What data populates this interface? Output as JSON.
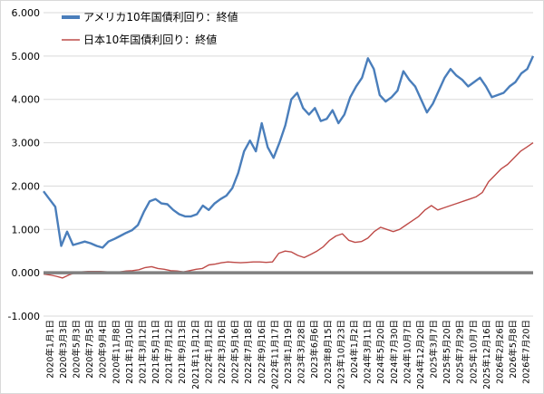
{
  "chart_data": {
    "type": "line",
    "title": "",
    "xlabel": "",
    "ylabel": "",
    "ylim": [
      -1.0,
      6.0
    ],
    "y_ticks": [
      "6.000",
      "5.000",
      "4.000",
      "3.000",
      "2.000",
      "1.000",
      "0.000",
      "-1.000"
    ],
    "y_tick_values": [
      6,
      5,
      4,
      3,
      2,
      1,
      0,
      -1
    ],
    "x_tick_labels": [
      "2020年1月1日",
      "2020年3月3日",
      "2020年5月3日",
      "2020年7月5日",
      "2020年9月4日",
      "2020年11月8日",
      "2021年1月10日",
      "2021年3月12日",
      "2021年5月11日",
      "2021年7月12日",
      "2021年9月13日",
      "2021年11月12日",
      "2022年1月12日",
      "2022年3月16日",
      "2022年5月16日",
      "2022年7月18日",
      "2022年9月16日",
      "2022年11月17日",
      "2023年1月19日",
      "2023年3月28日",
      "2023年6月6日",
      "2023年8月15日",
      "2023年10月23日",
      "2024年1月2日",
      "2024年3月11日",
      "2024年5月20日",
      "2024年7月30日",
      "2024年10月7日",
      "2024年12月20日",
      "2025年3月7日",
      "2025年5月20日",
      "2025年7月29日",
      "2025年10月7日",
      "2025年12月16日",
      "2026年2月26日",
      "2026年5月8日",
      "2026年7月20日"
    ],
    "grid": true,
    "legend_position": "top-left",
    "colors": {
      "us": "#4a7ebb",
      "jp": "#be4b48",
      "zero_line": "#808080",
      "grid": "#d9d9d9"
    },
    "series": [
      {
        "name": "アメリカ10年国債利回り：終値",
        "color": "#4a7ebb",
        "values": [
          1.88,
          1.7,
          1.52,
          0.62,
          0.95,
          0.64,
          0.68,
          0.72,
          0.68,
          0.62,
          0.58,
          0.72,
          0.78,
          0.85,
          0.92,
          0.98,
          1.1,
          1.4,
          1.65,
          1.7,
          1.6,
          1.58,
          1.45,
          1.35,
          1.3,
          1.3,
          1.35,
          1.55,
          1.45,
          1.6,
          1.7,
          1.78,
          1.95,
          2.3,
          2.8,
          3.05,
          2.8,
          3.45,
          2.9,
          2.65,
          3.0,
          3.4,
          4.0,
          4.15,
          3.8,
          3.65,
          3.8,
          3.5,
          3.55,
          3.75,
          3.45,
          3.65,
          4.05,
          4.3,
          4.5,
          4.95,
          4.7,
          4.1,
          3.95,
          4.05,
          4.2,
          4.65,
          4.45,
          4.3,
          4.0,
          3.7,
          3.9,
          4.2,
          4.5,
          4.7,
          4.55,
          4.45,
          4.3,
          4.4,
          4.5,
          4.3,
          4.05,
          4.1,
          4.15,
          4.3,
          4.4,
          4.6,
          4.7,
          5.0
        ]
      },
      {
        "name": "日本10年国債利回り：終値",
        "color": "#be4b48",
        "values": [
          -0.03,
          -0.05,
          -0.08,
          -0.12,
          -0.05,
          0.0,
          0.02,
          0.03,
          0.03,
          0.03,
          0.02,
          0.02,
          0.02,
          0.04,
          0.05,
          0.07,
          0.12,
          0.14,
          0.1,
          0.08,
          0.05,
          0.04,
          0.02,
          0.05,
          0.08,
          0.1,
          0.18,
          0.2,
          0.23,
          0.25,
          0.24,
          0.23,
          0.24,
          0.25,
          0.25,
          0.24,
          0.25,
          0.45,
          0.5,
          0.48,
          0.4,
          0.35,
          0.42,
          0.5,
          0.6,
          0.75,
          0.85,
          0.9,
          0.75,
          0.7,
          0.72,
          0.8,
          0.95,
          1.05,
          1.0,
          0.95,
          1.0,
          1.1,
          1.2,
          1.3,
          1.45,
          1.55,
          1.45,
          1.5,
          1.55,
          1.6,
          1.65,
          1.7,
          1.75,
          1.85,
          2.1,
          2.25,
          2.4,
          2.5,
          2.65,
          2.8,
          2.9,
          3.0
        ]
      }
    ]
  }
}
